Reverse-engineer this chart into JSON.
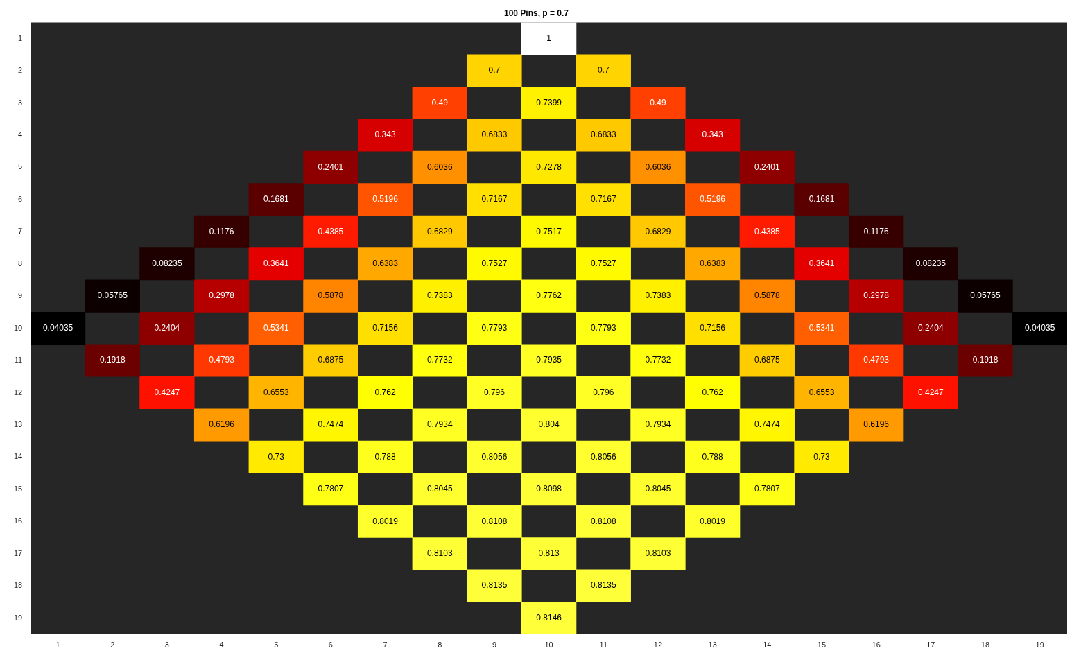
{
  "chart_data": {
    "type": "heatmap",
    "title": "100 Pins, p = 0.7",
    "categories": [
      "1",
      "2",
      "3",
      "4",
      "5",
      "6",
      "7",
      "8",
      "9",
      "10",
      "11",
      "12",
      "13",
      "14",
      "15",
      "16",
      "17",
      "18",
      "19"
    ],
    "y_categories": [
      "1",
      "2",
      "3",
      "4",
      "5",
      "6",
      "7",
      "8",
      "9",
      "10",
      "11",
      "12",
      "13",
      "14",
      "15",
      "16",
      "17",
      "18",
      "19"
    ],
    "cells": [
      [
        null,
        null,
        null,
        null,
        null,
        null,
        null,
        null,
        null,
        1,
        null,
        null,
        null,
        null,
        null,
        null,
        null,
        null,
        null
      ],
      [
        null,
        null,
        null,
        null,
        null,
        null,
        null,
        null,
        0.7,
        null,
        0.7,
        null,
        null,
        null,
        null,
        null,
        null,
        null,
        null
      ],
      [
        null,
        null,
        null,
        null,
        null,
        null,
        null,
        0.49,
        null,
        0.7399,
        null,
        0.49,
        null,
        null,
        null,
        null,
        null,
        null,
        null
      ],
      [
        null,
        null,
        null,
        null,
        null,
        null,
        0.343,
        null,
        0.6833,
        null,
        0.6833,
        null,
        0.343,
        null,
        null,
        null,
        null,
        null,
        null
      ],
      [
        null,
        null,
        null,
        null,
        null,
        0.2401,
        null,
        0.6036,
        null,
        0.7278,
        null,
        0.6036,
        null,
        0.2401,
        null,
        null,
        null,
        null,
        null
      ],
      [
        null,
        null,
        null,
        null,
        0.1681,
        null,
        0.5196,
        null,
        0.7167,
        null,
        0.7167,
        null,
        0.5196,
        null,
        0.1681,
        null,
        null,
        null,
        null
      ],
      [
        null,
        null,
        null,
        0.1176,
        null,
        0.4385,
        null,
        0.6829,
        null,
        0.7517,
        null,
        0.6829,
        null,
        0.4385,
        null,
        0.1176,
        null,
        null,
        null
      ],
      [
        null,
        null,
        0.08235,
        null,
        0.3641,
        null,
        0.6383,
        null,
        0.7527,
        null,
        0.7527,
        null,
        0.6383,
        null,
        0.3641,
        null,
        0.08235,
        null,
        null
      ],
      [
        null,
        0.05765,
        null,
        0.2978,
        null,
        0.5878,
        null,
        0.7383,
        null,
        0.7762,
        null,
        0.7383,
        null,
        0.5878,
        null,
        0.2978,
        null,
        0.05765,
        null
      ],
      [
        0.04035,
        null,
        0.2404,
        null,
        0.5341,
        null,
        0.7156,
        null,
        0.7793,
        null,
        0.7793,
        null,
        0.7156,
        null,
        0.5341,
        null,
        0.2404,
        null,
        0.04035
      ],
      [
        null,
        0.1918,
        null,
        0.4793,
        null,
        0.6875,
        null,
        0.7732,
        null,
        0.7935,
        null,
        0.7732,
        null,
        0.6875,
        null,
        0.4793,
        null,
        0.1918,
        null
      ],
      [
        null,
        null,
        0.4247,
        null,
        0.6553,
        null,
        0.762,
        null,
        0.796,
        null,
        0.796,
        null,
        0.762,
        null,
        0.6553,
        null,
        0.4247,
        null,
        null
      ],
      [
        null,
        null,
        null,
        0.6196,
        null,
        0.7474,
        null,
        0.7934,
        null,
        0.804,
        null,
        0.7934,
        null,
        0.7474,
        null,
        0.6196,
        null,
        null,
        null
      ],
      [
        null,
        null,
        null,
        null,
        0.73,
        null,
        0.788,
        null,
        0.8056,
        null,
        0.8056,
        null,
        0.788,
        null,
        0.73,
        null,
        null,
        null,
        null
      ],
      [
        null,
        null,
        null,
        null,
        null,
        0.7807,
        null,
        0.8045,
        null,
        0.8098,
        null,
        0.8045,
        null,
        0.7807,
        null,
        null,
        null,
        null,
        null
      ],
      [
        null,
        null,
        null,
        null,
        null,
        null,
        0.8019,
        null,
        0.8108,
        null,
        0.8108,
        null,
        0.8019,
        null,
        null,
        null,
        null,
        null,
        null
      ],
      [
        null,
        null,
        null,
        null,
        null,
        null,
        null,
        0.8103,
        null,
        0.813,
        null,
        0.8103,
        null,
        null,
        null,
        null,
        null,
        null,
        null
      ],
      [
        null,
        null,
        null,
        null,
        null,
        null,
        null,
        null,
        0.8135,
        null,
        0.8135,
        null,
        null,
        null,
        null,
        null,
        null,
        null,
        null
      ],
      [
        null,
        null,
        null,
        null,
        null,
        null,
        null,
        null,
        null,
        0.8146,
        null,
        null,
        null,
        null,
        null,
        null,
        null,
        null,
        null
      ]
    ],
    "data_labels": true
  }
}
